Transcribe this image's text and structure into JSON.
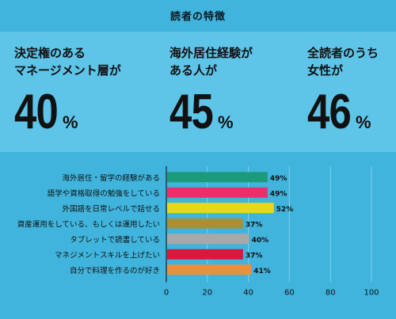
{
  "header": {
    "title": "読者の特徴"
  },
  "stats": [
    {
      "label_lines": [
        "決定権のある",
        "マネージメント層が"
      ],
      "value": "40",
      "unit": "%"
    },
    {
      "label_lines": [
        "海外居住経験が",
        "ある人が"
      ],
      "value": "45",
      "unit": "%"
    },
    {
      "label_lines": [
        "全読者のうち",
        "女性が"
      ],
      "value": "46",
      "unit": "%"
    }
  ],
  "chart_data": {
    "type": "bar",
    "orientation": "horizontal",
    "categories": [
      "海外居住・留学の経験がある",
      "語学や資格取得の勉強をしている",
      "外国語を日常レベルで話せる",
      "資産運用をしている、もしくは運用したい",
      "タブレットで読書している",
      "マネジメントスキルを上げたい",
      "自分で料理を作るのが好き"
    ],
    "values": [
      49,
      49,
      52,
      37,
      40,
      37,
      41
    ],
    "value_labels": [
      "49%",
      "49%",
      "52%",
      "37%",
      "40%",
      "37%",
      "41%"
    ],
    "colors": [
      "#1c9a7c",
      "#e8306a",
      "#e8d81c",
      "#a8903a",
      "#a8a8a8",
      "#d8183c",
      "#e8903c"
    ],
    "xlim": [
      0,
      100
    ],
    "xticks": [
      0,
      20,
      40,
      60,
      80,
      100
    ],
    "grid": true
  }
}
